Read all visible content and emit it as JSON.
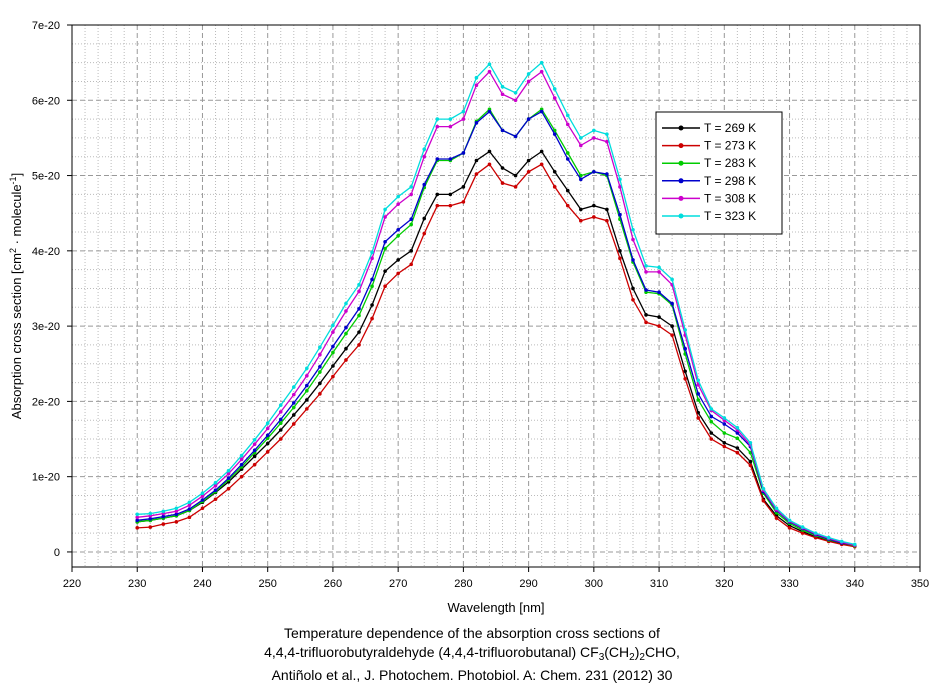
{
  "chart_data": {
    "type": "line",
    "title": "Temperature dependence of the absorption cross sections of",
    "subtitle": {
      "compound": "4,4,4-trifluorobutyraldehyde (4,4,4-trifluorobutanal) CF",
      "f1": "3",
      "f2": "(CH",
      "f3": "2",
      "f4": ")",
      "f5": "2",
      "f6": "CHO,",
      "reference": "Antiñolo et al., J. Photochem. Photobiol. A: Chem. 231 (2012) 30"
    },
    "xlabel": "Wavelength [nm]",
    "ylabel_parts": {
      "pre": "Absorption cross section [cm",
      "sup1": "2",
      "mid": " · molecule",
      "sup2": "-1",
      "post": "]"
    },
    "xlim": [
      220,
      350
    ],
    "ylim": [
      -2e-21,
      7e-20
    ],
    "x_ticks": [
      "220",
      "230",
      "240",
      "250",
      "260",
      "270",
      "280",
      "290",
      "300",
      "310",
      "320",
      "330",
      "340",
      "350"
    ],
    "y_ticks": [
      {
        "value": 0,
        "label": "0"
      },
      {
        "value": 1e-20,
        "label": "1e-20"
      },
      {
        "value": 2e-20,
        "label": "2e-20"
      },
      {
        "value": 3e-20,
        "label": "3e-20"
      },
      {
        "value": 4e-20,
        "label": "4e-20"
      },
      {
        "value": 5e-20,
        "label": "5e-20"
      },
      {
        "value": 6e-20,
        "label": "6e-20"
      },
      {
        "value": 7e-20,
        "label": "7e-20"
      }
    ],
    "grid": true,
    "legend_position": "upper-right",
    "x": [
      230,
      232,
      234,
      236,
      238,
      240,
      242,
      244,
      246,
      248,
      250,
      252,
      254,
      256,
      258,
      260,
      262,
      264,
      266,
      268,
      270,
      272,
      274,
      276,
      278,
      280,
      282,
      284,
      286,
      288,
      290,
      292,
      294,
      296,
      298,
      300,
      302,
      304,
      306,
      308,
      310,
      312,
      314,
      316,
      318,
      320,
      322,
      324,
      326,
      328,
      330,
      332,
      334,
      336,
      338,
      340
    ],
    "series": [
      {
        "name": "T = 269 K",
        "color": "#000000",
        "values_e20": [
          0.4,
          0.42,
          0.45,
          0.48,
          0.55,
          0.66,
          0.79,
          0.93,
          1.1,
          1.27,
          1.44,
          1.62,
          1.82,
          2.02,
          2.24,
          2.47,
          2.7,
          2.92,
          3.28,
          3.73,
          3.88,
          4.0,
          4.43,
          4.75,
          4.75,
          4.85,
          5.2,
          5.32,
          5.1,
          5.0,
          5.2,
          5.32,
          5.05,
          4.8,
          4.55,
          4.6,
          4.55,
          4.0,
          3.5,
          3.15,
          3.12,
          3.0,
          2.4,
          1.85,
          1.58,
          1.45,
          1.38,
          1.2,
          0.7,
          0.48,
          0.35,
          0.27,
          0.2,
          0.15,
          0.11,
          0.08
        ]
      },
      {
        "name": "T = 273 K",
        "color": "#cc0000",
        "values_e20": [
          0.32,
          0.33,
          0.37,
          0.4,
          0.46,
          0.58,
          0.7,
          0.84,
          1.0,
          1.16,
          1.33,
          1.5,
          1.7,
          1.9,
          2.1,
          2.33,
          2.55,
          2.75,
          3.1,
          3.53,
          3.7,
          3.82,
          4.23,
          4.6,
          4.6,
          4.65,
          5.02,
          5.15,
          4.9,
          4.85,
          5.05,
          5.15,
          4.85,
          4.6,
          4.4,
          4.45,
          4.4,
          3.9,
          3.35,
          3.05,
          3.0,
          2.88,
          2.3,
          1.78,
          1.5,
          1.4,
          1.32,
          1.15,
          0.68,
          0.45,
          0.32,
          0.25,
          0.19,
          0.14,
          0.1,
          0.07
        ]
      },
      {
        "name": "T = 283 K",
        "color": "#00cc00",
        "values_e20": [
          0.4,
          0.42,
          0.45,
          0.48,
          0.55,
          0.67,
          0.8,
          0.96,
          1.13,
          1.32,
          1.51,
          1.71,
          1.92,
          2.14,
          2.39,
          2.65,
          2.9,
          3.14,
          3.53,
          4.03,
          4.2,
          4.35,
          4.84,
          5.2,
          5.2,
          5.3,
          5.72,
          5.88,
          5.6,
          5.52,
          5.75,
          5.88,
          5.6,
          5.3,
          5.0,
          5.05,
          5.0,
          4.42,
          3.85,
          3.45,
          3.43,
          3.28,
          2.63,
          2.02,
          1.73,
          1.58,
          1.51,
          1.32,
          0.78,
          0.52,
          0.38,
          0.29,
          0.22,
          0.16,
          0.12,
          0.08
        ]
      },
      {
        "name": "T = 298 K",
        "color": "#0000cc",
        "values_e20": [
          0.42,
          0.44,
          0.47,
          0.5,
          0.57,
          0.69,
          0.82,
          0.98,
          1.16,
          1.35,
          1.55,
          1.76,
          1.98,
          2.21,
          2.46,
          2.73,
          2.98,
          3.23,
          3.62,
          4.12,
          4.28,
          4.42,
          4.88,
          5.22,
          5.22,
          5.3,
          5.7,
          5.85,
          5.6,
          5.52,
          5.75,
          5.85,
          5.55,
          5.22,
          4.95,
          5.05,
          5.02,
          4.48,
          3.88,
          3.48,
          3.45,
          3.3,
          2.7,
          2.1,
          1.8,
          1.7,
          1.58,
          1.4,
          0.8,
          0.55,
          0.4,
          0.31,
          0.23,
          0.17,
          0.12,
          0.09
        ]
      },
      {
        "name": "T = 308 K",
        "color": "#cc00cc",
        "values_e20": [
          0.46,
          0.48,
          0.51,
          0.54,
          0.62,
          0.74,
          0.88,
          1.04,
          1.23,
          1.43,
          1.64,
          1.86,
          2.09,
          2.34,
          2.62,
          2.92,
          3.2,
          3.46,
          3.9,
          4.45,
          4.62,
          4.75,
          5.25,
          5.65,
          5.65,
          5.75,
          6.2,
          6.38,
          6.08,
          6.0,
          6.25,
          6.38,
          6.03,
          5.68,
          5.4,
          5.5,
          5.45,
          4.85,
          4.15,
          3.72,
          3.72,
          3.55,
          2.88,
          2.22,
          1.88,
          1.75,
          1.62,
          1.42,
          0.82,
          0.56,
          0.41,
          0.32,
          0.24,
          0.18,
          0.13,
          0.09
        ]
      },
      {
        "name": "T = 323 K",
        "color": "#00dddd",
        "values_e20": [
          0.5,
          0.51,
          0.54,
          0.58,
          0.66,
          0.78,
          0.92,
          1.08,
          1.28,
          1.49,
          1.71,
          1.95,
          2.19,
          2.44,
          2.72,
          3.01,
          3.3,
          3.55,
          3.98,
          4.55,
          4.72,
          4.85,
          5.35,
          5.75,
          5.75,
          5.85,
          6.3,
          6.48,
          6.18,
          6.1,
          6.35,
          6.5,
          6.15,
          5.8,
          5.5,
          5.6,
          5.55,
          4.95,
          4.28,
          3.8,
          3.78,
          3.62,
          2.95,
          2.28,
          1.9,
          1.78,
          1.65,
          1.45,
          0.84,
          0.58,
          0.42,
          0.33,
          0.25,
          0.19,
          0.14,
          0.1
        ]
      }
    ]
  }
}
